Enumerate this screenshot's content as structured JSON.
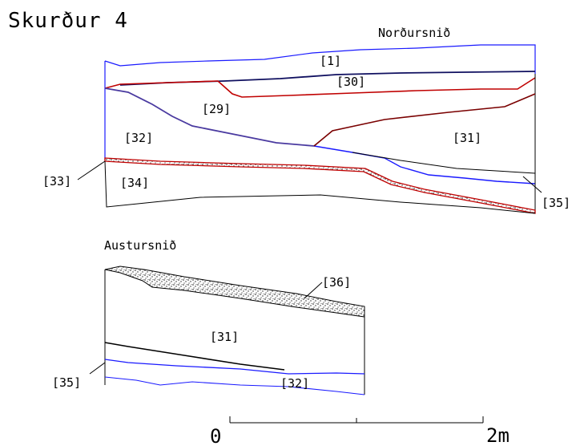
{
  "drawing": {
    "title": "Skurður 4",
    "sections": {
      "north": {
        "heading": "Norðursnið",
        "labels": {
          "l1": "[1]",
          "l30": "[30]",
          "l29": "[29]",
          "l32": "[32]",
          "l31": "[31]",
          "l33": "[33]",
          "l34": "[34]",
          "l35": "[35]"
        }
      },
      "east": {
        "heading": "Austursnið",
        "labels": {
          "l36": "[36]",
          "l31": "[31]",
          "l35": "[35]",
          "l32": "[32]"
        }
      }
    },
    "scale": {
      "start": "0",
      "end": "2m"
    },
    "colors": {
      "blue": "#1a1aff",
      "red": "#c00000",
      "darkred": "#7a0000",
      "navy": "#101060",
      "black": "#000000",
      "stipple": "#333333"
    }
  }
}
